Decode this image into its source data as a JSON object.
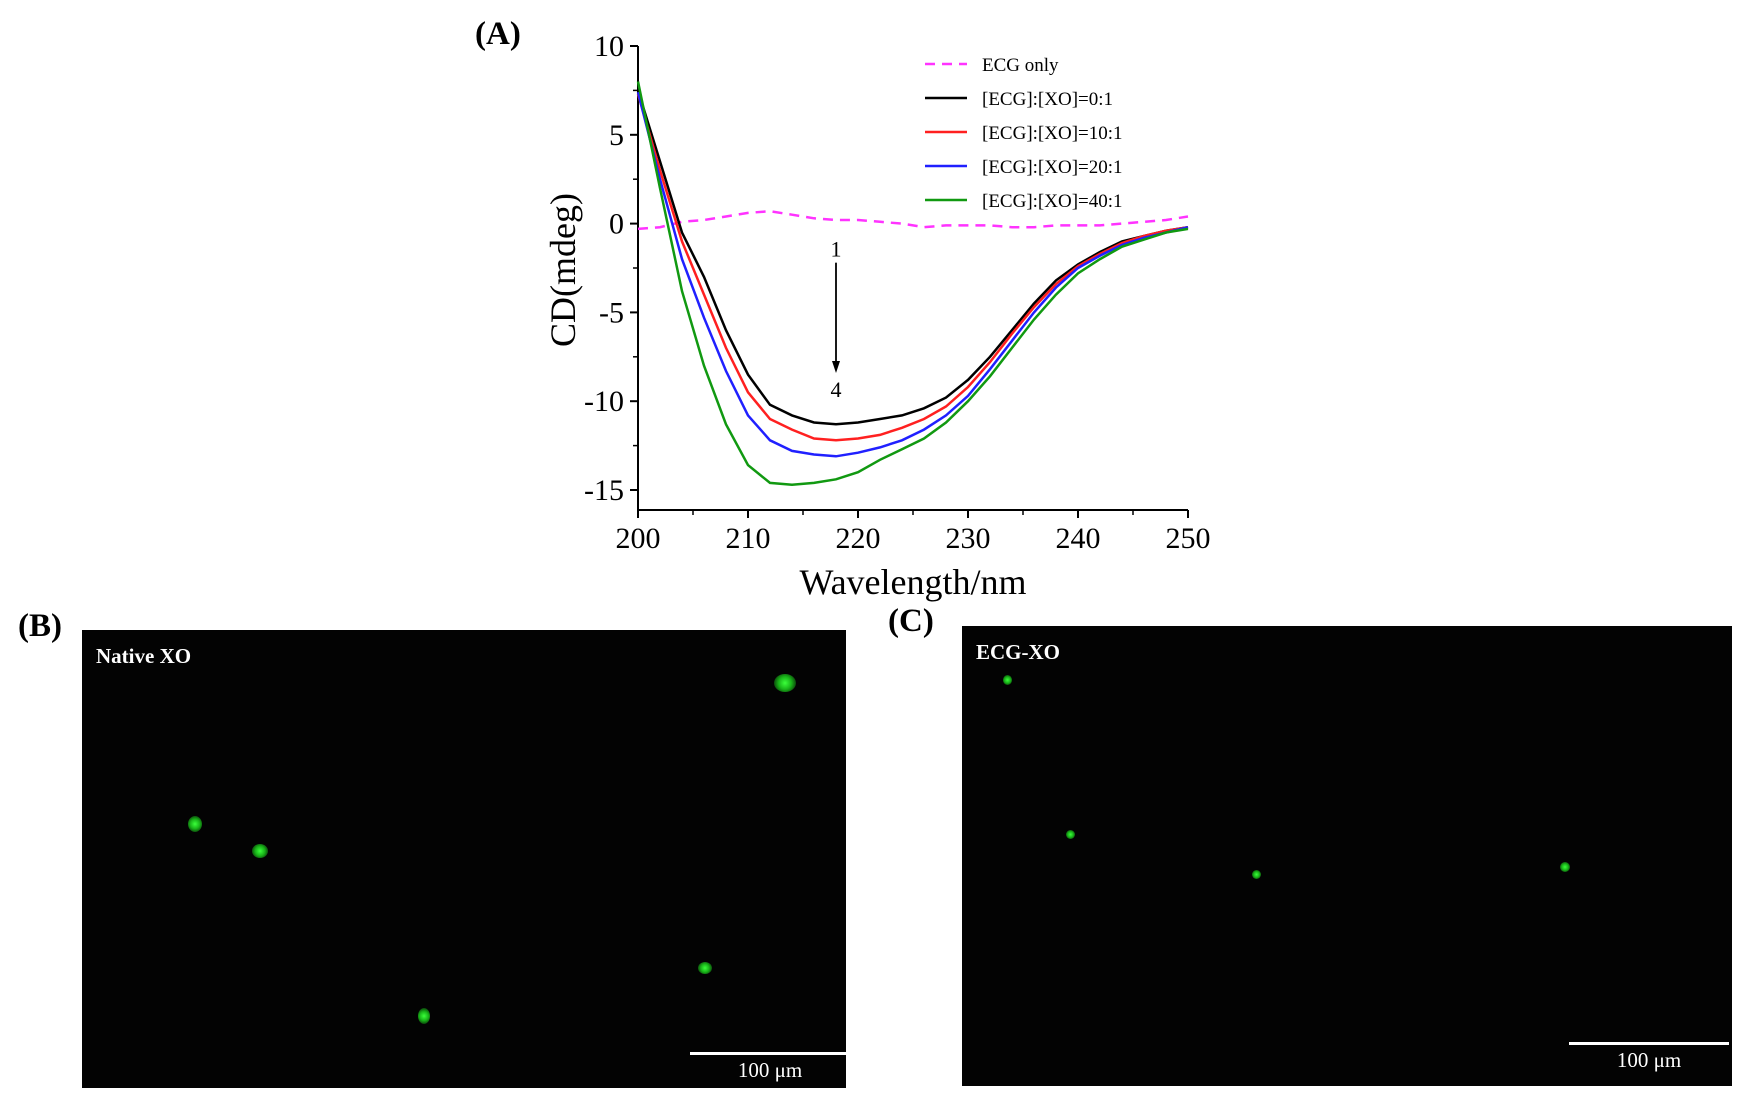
{
  "chart_data": {
    "type": "line",
    "panel_label": "(A)",
    "title": "",
    "xlabel": "Wavelength/nm",
    "ylabel": "CD(mdeg)",
    "xlim": [
      200,
      250
    ],
    "ylim": [
      -16,
      10
    ],
    "xticks": [
      200,
      210,
      220,
      230,
      240,
      250
    ],
    "yticks": [
      10,
      5,
      0,
      -5,
      -10,
      -15
    ],
    "legend_position": "top-right",
    "x": [
      200,
      202,
      204,
      206,
      208,
      210,
      212,
      214,
      216,
      218,
      220,
      222,
      224,
      226,
      228,
      230,
      232,
      234,
      236,
      238,
      240,
      242,
      244,
      246,
      248,
      250
    ],
    "series": [
      {
        "name": "ECG only",
        "color": "#ff33ff",
        "dash": true,
        "values": [
          -0.3,
          -0.2,
          0.1,
          0.2,
          0.4,
          0.6,
          0.7,
          0.5,
          0.3,
          0.2,
          0.2,
          0.1,
          0.0,
          -0.2,
          -0.1,
          -0.1,
          -0.1,
          -0.2,
          -0.2,
          -0.1,
          -0.1,
          -0.1,
          0.0,
          0.1,
          0.2,
          0.4
        ]
      },
      {
        "name": "[ECG]:[XO]=0:1",
        "color": "#000000",
        "dash": false,
        "values": [
          7.5,
          3.5,
          -0.5,
          -3.0,
          -6.0,
          -8.5,
          -10.2,
          -10.8,
          -11.2,
          -11.3,
          -11.2,
          -11.0,
          -10.8,
          -10.4,
          -9.8,
          -8.8,
          -7.5,
          -6.0,
          -4.5,
          -3.2,
          -2.3,
          -1.6,
          -1.0,
          -0.7,
          -0.4,
          -0.2
        ]
      },
      {
        "name": "[ECG]:[XO]=10:1",
        "color": "#ff2020",
        "dash": false,
        "values": [
          7.3,
          3.0,
          -1.0,
          -4.0,
          -7.0,
          -9.5,
          -11.0,
          -11.6,
          -12.1,
          -12.2,
          -12.1,
          -11.9,
          -11.5,
          -11.0,
          -10.3,
          -9.2,
          -7.8,
          -6.2,
          -4.7,
          -3.4,
          -2.4,
          -1.7,
          -1.1,
          -0.7,
          -0.4,
          -0.2
        ]
      },
      {
        "name": "[ECG]:[XO]=20:1",
        "color": "#2020ff",
        "dash": false,
        "values": [
          7.4,
          2.5,
          -2.0,
          -5.3,
          -8.3,
          -10.8,
          -12.2,
          -12.8,
          -13.0,
          -13.1,
          -12.9,
          -12.6,
          -12.2,
          -11.6,
          -10.8,
          -9.7,
          -8.2,
          -6.6,
          -5.0,
          -3.6,
          -2.5,
          -1.8,
          -1.2,
          -0.8,
          -0.5,
          -0.2
        ]
      },
      {
        "name": "[ECG]:[XO]=40:1",
        "color": "#119911",
        "dash": false,
        "values": [
          8.0,
          2.0,
          -3.8,
          -8.0,
          -11.3,
          -13.6,
          -14.6,
          -14.7,
          -14.6,
          -14.4,
          -14.0,
          -13.3,
          -12.7,
          -12.1,
          -11.2,
          -10.0,
          -8.6,
          -7.0,
          -5.4,
          -4.0,
          -2.8,
          -2.0,
          -1.3,
          -0.9,
          -0.5,
          -0.3
        ]
      }
    ],
    "annotation": {
      "start_label": "1",
      "end_label": "4",
      "x": 218,
      "y_start": -2.2,
      "y_end": -8.3
    }
  },
  "panel_b": {
    "label": "(B)",
    "title": "Native XO",
    "scale": "100 μm"
  },
  "panel_c": {
    "label": "(C)",
    "title": "ECG-XO",
    "scale": "100 μm"
  },
  "colors": {
    "micro_bg": "#030303",
    "fluor": "#22dd22"
  }
}
